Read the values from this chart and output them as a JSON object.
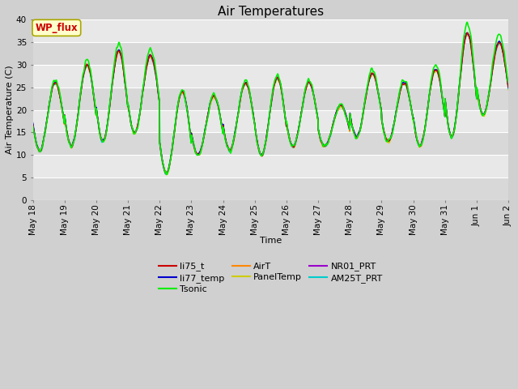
{
  "title": "Air Temperatures",
  "xlabel": "Time",
  "ylabel": "Air Temperature (C)",
  "ylim": [
    0,
    40
  ],
  "yticks": [
    0,
    5,
    10,
    15,
    20,
    25,
    30,
    35,
    40
  ],
  "figsize": [
    6.4,
    4.8
  ],
  "dpi": 100,
  "series": {
    "li75_t": {
      "color": "#cc0000",
      "lw": 1.0,
      "zorder": 5
    },
    "li77_temp": {
      "color": "#0000cc",
      "lw": 1.0,
      "zorder": 5
    },
    "Tsonic": {
      "color": "#00ee00",
      "lw": 1.2,
      "zorder": 6
    },
    "AirT": {
      "color": "#ff8800",
      "lw": 1.0,
      "zorder": 5
    },
    "PanelTemp": {
      "color": "#cccc00",
      "lw": 1.0,
      "zorder": 4
    },
    "NR01_PRT": {
      "color": "#9900cc",
      "lw": 1.0,
      "zorder": 5
    },
    "AM25T_PRT": {
      "color": "#00cccc",
      "lw": 1.3,
      "zorder": 4
    }
  },
  "legend_items": [
    {
      "label": "li75_t",
      "color": "#cc0000"
    },
    {
      "label": "li77_temp",
      "color": "#0000cc"
    },
    {
      "label": "Tsonic",
      "color": "#00ee00"
    },
    {
      "label": "AirT",
      "color": "#ff8800"
    },
    {
      "label": "PanelTemp",
      "color": "#cccc00"
    },
    {
      "label": "NR01_PRT",
      "color": "#9900cc"
    },
    {
      "label": "AM25T_PRT",
      "color": "#00cccc"
    }
  ],
  "plot_bg_color": "#e8e8e8",
  "fig_bg_color": "#d0d0d0",
  "wp_flux_text": "WP_flux",
  "wp_flux_bg": "#ffffcc",
  "wp_flux_border": "#aaa800",
  "wp_flux_textcolor": "#cc0000",
  "grid_color": "#ffffff",
  "alt_band_color": "#d8d8d8",
  "num_points": 2160,
  "days": 15
}
